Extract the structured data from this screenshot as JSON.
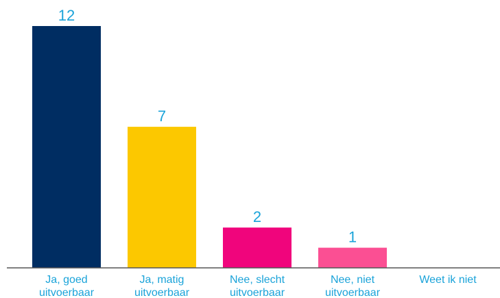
{
  "chart_data": {
    "type": "bar",
    "title": "",
    "xlabel": "",
    "ylabel": "",
    "categories": [
      [
        "Ja, goed",
        "uitvoerbaar"
      ],
      [
        "Ja, matig",
        "uitvoerbaar"
      ],
      [
        "Nee, slecht",
        "uitvoerbaar"
      ],
      [
        "Nee, niet",
        "uitvoerbaar"
      ],
      [
        "Weet ik niet"
      ]
    ],
    "values": [
      12,
      7,
      2,
      1,
      0
    ],
    "data_labels": [
      "12",
      "7",
      "2",
      "1",
      ""
    ],
    "ylim": [
      0,
      12
    ],
    "grid": false,
    "legend": "none",
    "colors": [
      "#002d62",
      "#fcc800",
      "#f0057c",
      "#fb4f93",
      "#fb4f93"
    ],
    "axis_color": "#555555",
    "label_color": "#1aa3d9"
  }
}
